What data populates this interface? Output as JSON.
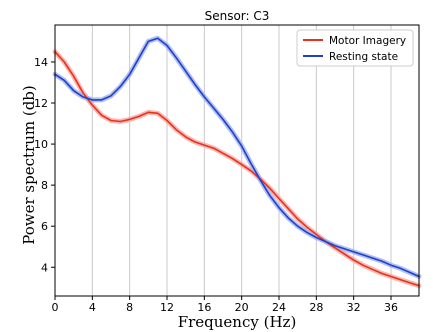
{
  "chart_data": {
    "type": "line",
    "title": "Sensor: C3",
    "xlabel": "Frequency (Hz)",
    "ylabel": "Power spectrum (db)",
    "xlim": [
      0,
      39
    ],
    "ylim": [
      2.6,
      15.8
    ],
    "xticks": [
      0,
      4,
      8,
      12,
      16,
      20,
      24,
      28,
      32,
      36
    ],
    "yticks": [
      4,
      6,
      8,
      10,
      12,
      14
    ],
    "grid": "vertical",
    "legend_position": "top-right",
    "series": [
      {
        "name": "Motor Imagery",
        "color": "#e8321e",
        "band_color": "#f4a8a0",
        "x": [
          0,
          1,
          2,
          3,
          4,
          5,
          6,
          7,
          8,
          9,
          10,
          11,
          12,
          13,
          14,
          15,
          16,
          17,
          18,
          19,
          20,
          21,
          22,
          23,
          24,
          25,
          26,
          27,
          28,
          29,
          30,
          31,
          32,
          33,
          34,
          35,
          36,
          37,
          38,
          39
        ],
        "y": [
          14.5,
          14.0,
          13.3,
          12.5,
          11.9,
          11.4,
          11.15,
          11.1,
          11.2,
          11.35,
          11.55,
          11.5,
          11.15,
          10.7,
          10.35,
          10.1,
          9.95,
          9.8,
          9.55,
          9.3,
          9.0,
          8.7,
          8.3,
          7.85,
          7.35,
          6.85,
          6.35,
          5.95,
          5.6,
          5.25,
          4.95,
          4.65,
          4.35,
          4.1,
          3.9,
          3.7,
          3.55,
          3.4,
          3.25,
          3.1
        ]
      },
      {
        "name": "Resting state",
        "color": "#1f3fcc",
        "band_color": "#9fb0ee",
        "x": [
          0,
          1,
          2,
          3,
          4,
          5,
          6,
          7,
          8,
          9,
          10,
          11,
          12,
          13,
          14,
          15,
          16,
          17,
          18,
          19,
          20,
          21,
          22,
          23,
          24,
          25,
          26,
          27,
          28,
          29,
          30,
          31,
          32,
          33,
          34,
          35,
          36,
          37,
          38,
          39
        ],
        "y": [
          13.4,
          13.1,
          12.6,
          12.3,
          12.15,
          12.15,
          12.35,
          12.8,
          13.4,
          14.2,
          15.0,
          15.15,
          14.8,
          14.2,
          13.55,
          12.9,
          12.3,
          11.75,
          11.2,
          10.6,
          9.9,
          9.05,
          8.25,
          7.5,
          6.9,
          6.4,
          6.0,
          5.7,
          5.45,
          5.25,
          5.05,
          4.9,
          4.75,
          4.6,
          4.45,
          4.3,
          4.1,
          3.95,
          3.75,
          3.55
        ]
      }
    ]
  }
}
